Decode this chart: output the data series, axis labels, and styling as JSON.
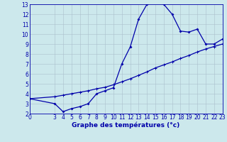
{
  "xlabel": "Graphe des températures (°c)",
  "bg_color": "#cce8ec",
  "grid_color": "#aac0cc",
  "line_color": "#0000aa",
  "xlim": [
    0,
    23
  ],
  "ylim": [
    2,
    13
  ],
  "xticks": [
    0,
    3,
    4,
    5,
    6,
    7,
    8,
    9,
    10,
    11,
    12,
    13,
    14,
    15,
    16,
    17,
    18,
    19,
    20,
    21,
    22,
    23
  ],
  "yticks": [
    2,
    3,
    4,
    5,
    6,
    7,
    8,
    9,
    10,
    11,
    12,
    13
  ],
  "curve1_x": [
    0,
    3,
    4,
    5,
    6,
    7,
    8,
    9,
    10,
    11,
    12,
    13,
    14,
    15,
    16,
    17,
    18,
    19,
    20,
    21,
    22,
    23
  ],
  "curve1_y": [
    3.5,
    3.0,
    2.2,
    2.5,
    2.7,
    3.0,
    4.0,
    4.3,
    4.6,
    7.0,
    8.7,
    11.5,
    13.0,
    13.3,
    13.0,
    12.0,
    10.3,
    10.2,
    10.5,
    9.0,
    9.0,
    9.5
  ],
  "curve2_x": [
    0,
    3,
    4,
    5,
    6,
    7,
    8,
    9,
    10,
    11,
    12,
    13,
    14,
    15,
    16,
    17,
    18,
    19,
    20,
    21,
    22,
    23
  ],
  "curve2_y": [
    3.5,
    3.7,
    3.85,
    4.0,
    4.15,
    4.3,
    4.5,
    4.65,
    4.9,
    5.2,
    5.5,
    5.85,
    6.2,
    6.6,
    6.9,
    7.2,
    7.55,
    7.85,
    8.2,
    8.5,
    8.75,
    9.0
  ],
  "xlabel_fontsize": 6.5,
  "tick_fontsize": 5.5,
  "linewidth": 0.9,
  "marker_size": 2.0
}
